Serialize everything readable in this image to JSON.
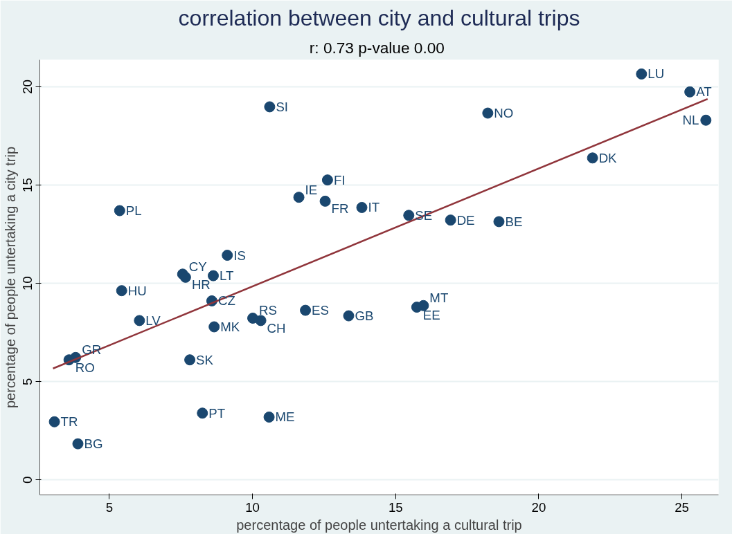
{
  "chart_data": {
    "type": "scatter",
    "title": "correlation between city and cultural trips",
    "subtitle": "r: 0.73  p-value 0.00",
    "xlabel": "percentage of people untertaking a cultural trip",
    "ylabel": "percentage of people untertaking a city trip",
    "xlim": [
      2.57,
      26.28
    ],
    "ylim": [
      -0.76,
      21.37
    ],
    "xticks": [
      5,
      10,
      15,
      20,
      25
    ],
    "yticks": [
      0,
      5,
      10,
      15,
      20
    ],
    "grid": "y",
    "series": [
      {
        "marker": "circle",
        "color": "#1a476f",
        "x": [
          23.59,
          25.28,
          25.84,
          18.22,
          10.6,
          21.88,
          12.62,
          11.62,
          12.54,
          13.82,
          15.46,
          16.92,
          18.61,
          5.36,
          9.12,
          7.56,
          7.66,
          8.63,
          5.43,
          8.58,
          6.05,
          8.66,
          7.81,
          11.85,
          13.36,
          10.01,
          10.29,
          15.74,
          15.97,
          3.82,
          3.59,
          3.08,
          3.9,
          8.25,
          10.58
        ],
        "values": [
          20.65,
          19.74,
          18.3,
          18.66,
          18.98,
          16.38,
          15.26,
          14.38,
          14.18,
          13.86,
          13.46,
          13.22,
          13.14,
          13.7,
          11.43,
          10.47,
          10.31,
          10.39,
          9.63,
          9.11,
          8.11,
          7.79,
          6.11,
          8.63,
          8.35,
          8.23,
          8.11,
          8.79,
          8.87,
          6.23,
          6.11,
          2.96,
          1.84,
          3.4,
          3.2
        ]
      },
      {
        "type": "line",
        "color": "#90353b",
        "x": [
          3.03,
          25.9
        ],
        "values": [
          5.67,
          19.38
        ]
      }
    ],
    "annotations": [
      {
        "text": "LU",
        "x": 23.59,
        "y": 20.65
      },
      {
        "text": "AT",
        "x": 25.28,
        "y": 19.74
      },
      {
        "text": "NL",
        "x": 25.84,
        "y": 18.3
      },
      {
        "text": "NO",
        "x": 18.22,
        "y": 18.66
      },
      {
        "text": "SI",
        "x": 10.6,
        "y": 18.98
      },
      {
        "text": "DK",
        "x": 21.88,
        "y": 16.38
      },
      {
        "text": "FI",
        "x": 12.62,
        "y": 15.26
      },
      {
        "text": "IE",
        "x": 11.62,
        "y": 14.38
      },
      {
        "text": "FR",
        "x": 12.54,
        "y": 14.18
      },
      {
        "text": "IT",
        "x": 13.82,
        "y": 13.86
      },
      {
        "text": "SE",
        "x": 15.46,
        "y": 13.46
      },
      {
        "text": "DE",
        "x": 16.92,
        "y": 13.22
      },
      {
        "text": "BE",
        "x": 18.61,
        "y": 13.14
      },
      {
        "text": "PL",
        "x": 5.36,
        "y": 13.7
      },
      {
        "text": "IS",
        "x": 9.12,
        "y": 11.43
      },
      {
        "text": "CY",
        "x": 7.56,
        "y": 10.47
      },
      {
        "text": "HR",
        "x": 7.66,
        "y": 10.31
      },
      {
        "text": "LT",
        "x": 8.63,
        "y": 10.39
      },
      {
        "text": "HU",
        "x": 5.43,
        "y": 9.63
      },
      {
        "text": "CZ",
        "x": 8.58,
        "y": 9.11
      },
      {
        "text": "LV",
        "x": 6.05,
        "y": 8.11
      },
      {
        "text": "MK",
        "x": 8.66,
        "y": 7.79
      },
      {
        "text": "SK",
        "x": 7.81,
        "y": 6.11
      },
      {
        "text": "ES",
        "x": 11.85,
        "y": 8.63
      },
      {
        "text": "GB",
        "x": 13.36,
        "y": 8.35
      },
      {
        "text": "RS",
        "x": 10.01,
        "y": 8.23
      },
      {
        "text": "CH",
        "x": 10.29,
        "y": 8.11
      },
      {
        "text": "EE",
        "x": 15.74,
        "y": 8.79
      },
      {
        "text": "MT",
        "x": 15.97,
        "y": 8.87
      },
      {
        "text": "GR",
        "x": 3.82,
        "y": 6.23
      },
      {
        "text": "RO",
        "x": 3.59,
        "y": 6.11
      },
      {
        "text": "TR",
        "x": 3.08,
        "y": 2.96
      },
      {
        "text": "BG",
        "x": 3.9,
        "y": 1.84
      },
      {
        "text": "PT",
        "x": 8.25,
        "y": 3.4
      },
      {
        "text": "ME",
        "x": 10.58,
        "y": 3.2
      }
    ]
  }
}
